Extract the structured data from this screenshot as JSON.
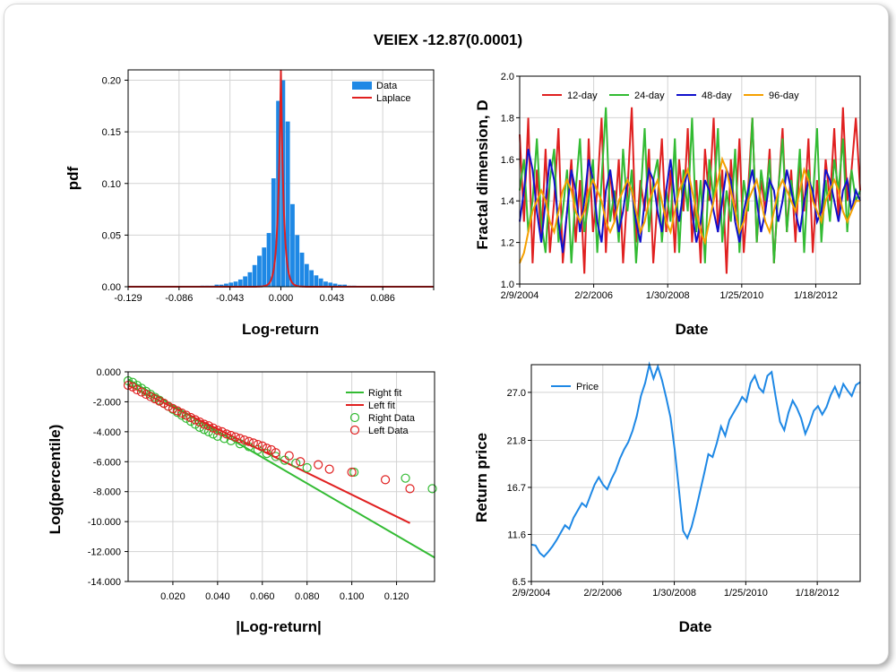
{
  "page": {
    "title": "VEIEX -12.87(0.0001)"
  },
  "colors": {
    "blue": "#1e88e5",
    "red": "#e02020",
    "green": "#33bb33",
    "navy": "#1010cc",
    "orange": "#f5a000",
    "grid": "#d3d3d3"
  },
  "chart_data": [
    {
      "id": "hist",
      "type": "bar",
      "title": "",
      "xlabel": "Log-return",
      "ylabel": "pdf",
      "xlim": [
        -0.129,
        0.129
      ],
      "ylim": [
        0,
        0.21
      ],
      "x_ticks": [
        "-0.129",
        "-0.086",
        "-0.043",
        "0.000",
        "0.043",
        "0.086"
      ],
      "y_ticks": [
        "0.00",
        "0.05",
        "0.10",
        "0.15",
        "0.20"
      ],
      "legend": {
        "position": "top-right",
        "entries": [
          "Data",
          "Laplace"
        ]
      },
      "bin_width": 0.004,
      "bin_centers": [
        -0.066,
        -0.062,
        -0.058,
        -0.054,
        -0.05,
        -0.046,
        -0.042,
        -0.038,
        -0.034,
        -0.03,
        -0.026,
        -0.022,
        -0.018,
        -0.014,
        -0.01,
        -0.006,
        -0.002,
        0.002,
        0.006,
        0.01,
        0.014,
        0.018,
        0.022,
        0.026,
        0.03,
        0.034,
        0.038,
        0.042,
        0.046,
        0.05,
        0.054,
        0.058,
        0.062
      ],
      "values": [
        0.001,
        0.001,
        0.001,
        0.002,
        0.002,
        0.003,
        0.004,
        0.005,
        0.007,
        0.01,
        0.014,
        0.021,
        0.03,
        0.038,
        0.052,
        0.105,
        0.18,
        0.2,
        0.16,
        0.08,
        0.05,
        0.033,
        0.022,
        0.016,
        0.011,
        0.008,
        0.005,
        0.004,
        0.003,
        0.002,
        0.002,
        0.001,
        0.001
      ],
      "series": [
        {
          "name": "Data",
          "color": "#1e88e5"
        },
        {
          "name": "Laplace",
          "color": "#e02020",
          "mu": 0.0,
          "b": 0.0024,
          "peak": 0.21
        }
      ]
    },
    {
      "id": "fractal",
      "type": "line",
      "title": "",
      "xlabel": "Date",
      "ylabel": "Fractal dimension, D",
      "ylim": [
        1.0,
        2.0
      ],
      "x_ticks": [
        "2/9/2004",
        "2/2/2006",
        "1/30/2008",
        "1/25/2010",
        "1/18/2012"
      ],
      "y_ticks": [
        "1.0",
        "1.2",
        "1.4",
        "1.6",
        "1.8",
        "2.0"
      ],
      "legend": {
        "position": "top-left",
        "entries": [
          "12-day",
          "24-day",
          "48-day",
          "96-day"
        ]
      },
      "series": [
        {
          "name": "12-day",
          "color": "#e02020",
          "values": [
            1.72,
            1.3,
            1.8,
            1.1,
            1.55,
            1.2,
            1.65,
            1.15,
            1.4,
            1.75,
            1.1,
            1.35,
            1.6,
            1.2,
            1.5,
            1.05,
            1.7,
            1.25,
            1.45,
            1.8,
            1.15,
            1.55,
            1.3,
            1.6,
            1.1,
            1.45,
            1.85,
            1.2,
            1.5,
            1.35,
            1.65,
            1.1,
            1.4,
            1.7,
            1.25,
            1.55,
            1.15,
            1.6,
            1.35,
            1.75,
            1.2,
            1.5,
            1.1,
            1.65,
            1.4,
            1.8,
            1.25,
            1.55,
            1.05,
            1.6,
            1.3,
            1.7,
            1.15,
            1.45,
            1.8,
            1.2,
            1.5,
            1.35,
            1.65,
            1.1,
            1.45,
            1.75,
            1.25,
            1.55,
            1.2,
            1.6,
            1.35,
            1.7,
            1.15,
            1.5,
            1.25,
            1.6,
            1.4,
            1.75,
            1.3,
            1.85,
            1.4,
            1.55,
            1.8,
            1.45
          ]
        },
        {
          "name": "24-day",
          "color": "#33bb33",
          "values": [
            1.45,
            1.6,
            1.25,
            1.4,
            1.7,
            1.3,
            1.15,
            1.5,
            1.65,
            1.2,
            1.35,
            1.55,
            1.1,
            1.45,
            1.7,
            1.25,
            1.4,
            1.6,
            1.15,
            1.5,
            1.85,
            1.3,
            1.45,
            1.2,
            1.65,
            1.35,
            1.55,
            1.1,
            1.4,
            1.75,
            1.25,
            1.5,
            1.6,
            1.2,
            1.45,
            1.3,
            1.7,
            1.15,
            1.55,
            1.35,
            1.8,
            1.25,
            1.5,
            1.1,
            1.6,
            1.4,
            1.75,
            1.2,
            1.45,
            1.3,
            1.65,
            1.15,
            1.5,
            1.35,
            1.8,
            1.2,
            1.55,
            1.4,
            1.6,
            1.1,
            1.45,
            1.7,
            1.25,
            1.5,
            1.35,
            1.65,
            1.15,
            1.55,
            1.4,
            1.75,
            1.2,
            1.5,
            1.3,
            1.6,
            1.45,
            1.7,
            1.25,
            1.55,
            1.4,
            1.45
          ]
        },
        {
          "name": "48-day",
          "color": "#1010cc",
          "values": [
            1.3,
            1.45,
            1.65,
            1.55,
            1.35,
            1.2,
            1.4,
            1.6,
            1.5,
            1.3,
            1.15,
            1.35,
            1.55,
            1.45,
            1.25,
            1.4,
            1.6,
            1.5,
            1.3,
            1.2,
            1.45,
            1.55,
            1.4,
            1.25,
            1.35,
            1.5,
            1.45,
            1.3,
            1.2,
            1.4,
            1.55,
            1.5,
            1.35,
            1.25,
            1.45,
            1.6,
            1.4,
            1.3,
            1.45,
            1.55,
            1.35,
            1.2,
            1.3,
            1.5,
            1.45,
            1.35,
            1.25,
            1.4,
            1.55,
            1.5,
            1.3,
            1.2,
            1.35,
            1.45,
            1.55,
            1.4,
            1.25,
            1.35,
            1.5,
            1.45,
            1.3,
            1.4,
            1.55,
            1.45,
            1.35,
            1.25,
            1.4,
            1.5,
            1.45,
            1.3,
            1.35,
            1.55,
            1.5,
            1.4,
            1.3,
            1.45,
            1.5,
            1.35,
            1.45,
            1.4
          ]
        },
        {
          "name": "96-day",
          "color": "#f5a000",
          "values": [
            1.1,
            1.15,
            1.25,
            1.35,
            1.4,
            1.45,
            1.4,
            1.3,
            1.25,
            1.35,
            1.45,
            1.5,
            1.45,
            1.35,
            1.3,
            1.35,
            1.45,
            1.5,
            1.45,
            1.4,
            1.3,
            1.25,
            1.3,
            1.4,
            1.45,
            1.5,
            1.45,
            1.35,
            1.25,
            1.3,
            1.4,
            1.45,
            1.5,
            1.4,
            1.3,
            1.25,
            1.35,
            1.45,
            1.5,
            1.55,
            1.45,
            1.35,
            1.25,
            1.2,
            1.3,
            1.4,
            1.5,
            1.6,
            1.55,
            1.45,
            1.35,
            1.25,
            1.3,
            1.4,
            1.45,
            1.5,
            1.4,
            1.3,
            1.25,
            1.35,
            1.45,
            1.5,
            1.45,
            1.4,
            1.35,
            1.45,
            1.55,
            1.5,
            1.4,
            1.35,
            1.3,
            1.4,
            1.45,
            1.5,
            1.45,
            1.35,
            1.3,
            1.35,
            1.4,
            1.4
          ]
        }
      ]
    },
    {
      "id": "tail",
      "type": "scatter",
      "title": "",
      "xlabel": "|Log-return|",
      "ylabel": "Log(percentile)",
      "xlim": [
        0,
        0.137
      ],
      "ylim": [
        -14,
        0
      ],
      "x_ticks": [
        "0.020",
        "0.040",
        "0.060",
        "0.080",
        "0.100",
        "0.120"
      ],
      "y_ticks": [
        "0.000",
        "-2.000",
        "-4.000",
        "-6.000",
        "-8.000",
        "-10.000",
        "-12.000",
        "-14.000"
      ],
      "legend": {
        "position": "top-right",
        "entries": [
          "Right fit",
          "Left fit",
          "Right Data",
          "Left Data"
        ]
      },
      "series": [
        {
          "name": "Right fit",
          "color": "#33bb33",
          "x": [
            0.0,
            0.137
          ],
          "y": [
            -0.5,
            -12.4
          ]
        },
        {
          "name": "Left fit",
          "color": "#e02020",
          "x": [
            0.0,
            0.126
          ],
          "y": [
            -0.9,
            -10.1
          ]
        },
        {
          "name": "Right Data",
          "color": "#33bb33",
          "x": [
            0.0,
            0.002,
            0.004,
            0.006,
            0.008,
            0.01,
            0.012,
            0.014,
            0.016,
            0.018,
            0.02,
            0.022,
            0.024,
            0.026,
            0.028,
            0.03,
            0.032,
            0.034,
            0.036,
            0.038,
            0.04,
            0.043,
            0.046,
            0.05,
            0.054,
            0.058,
            0.062,
            0.066,
            0.07,
            0.075,
            0.08,
            0.101,
            0.124,
            0.136
          ],
          "y": [
            -0.6,
            -0.7,
            -0.9,
            -1.1,
            -1.3,
            -1.5,
            -1.7,
            -1.9,
            -2.1,
            -2.3,
            -2.5,
            -2.7,
            -2.9,
            -3.1,
            -3.3,
            -3.5,
            -3.7,
            -3.85,
            -4.0,
            -4.15,
            -4.3,
            -4.45,
            -4.6,
            -4.8,
            -5.0,
            -5.2,
            -5.45,
            -5.65,
            -5.9,
            -6.1,
            -6.4,
            -6.7,
            -7.1,
            -7.8
          ]
        },
        {
          "name": "Left Data",
          "color": "#e02020",
          "x": [
            0.0,
            0.002,
            0.004,
            0.006,
            0.008,
            0.01,
            0.012,
            0.014,
            0.016,
            0.018,
            0.02,
            0.022,
            0.024,
            0.026,
            0.028,
            0.03,
            0.032,
            0.034,
            0.036,
            0.038,
            0.04,
            0.042,
            0.044,
            0.046,
            0.048,
            0.05,
            0.052,
            0.054,
            0.056,
            0.058,
            0.06,
            0.062,
            0.064,
            0.066,
            0.072,
            0.077,
            0.085,
            0.09,
            0.1,
            0.115,
            0.126
          ],
          "y": [
            -0.9,
            -1.0,
            -1.2,
            -1.35,
            -1.5,
            -1.65,
            -1.8,
            -1.95,
            -2.1,
            -2.3,
            -2.45,
            -2.6,
            -2.75,
            -2.9,
            -3.05,
            -3.2,
            -3.35,
            -3.5,
            -3.6,
            -3.75,
            -3.9,
            -4.0,
            -4.15,
            -4.25,
            -4.35,
            -4.45,
            -4.55,
            -4.65,
            -4.75,
            -4.85,
            -4.95,
            -5.1,
            -5.2,
            -5.4,
            -5.6,
            -6.0,
            -6.2,
            -6.5,
            -6.7,
            -7.2,
            -7.8
          ]
        }
      ]
    },
    {
      "id": "price",
      "type": "line",
      "title": "",
      "xlabel": "Date",
      "ylabel": "Return price",
      "ylim": [
        6.5,
        30.0
      ],
      "x_ticks": [
        "2/9/2004",
        "2/2/2006",
        "1/30/2008",
        "1/25/2010",
        "1/18/2012"
      ],
      "y_ticks": [
        "6.5",
        "11.6",
        "16.7",
        "21.8",
        "27.0"
      ],
      "legend": {
        "position": "top-left",
        "entries": [
          "Price"
        ]
      },
      "series": [
        {
          "name": "Price",
          "color": "#1e88e5",
          "values": [
            10.5,
            10.4,
            9.6,
            9.2,
            9.7,
            10.3,
            11.0,
            11.8,
            12.6,
            12.2,
            13.4,
            14.2,
            15.0,
            14.6,
            15.8,
            17.0,
            17.8,
            17.0,
            16.5,
            17.6,
            18.5,
            19.8,
            20.8,
            21.6,
            22.8,
            24.4,
            26.6,
            28.0,
            30.0,
            28.5,
            29.8,
            28.3,
            26.4,
            24.3,
            20.8,
            16.5,
            12.0,
            11.2,
            12.4,
            14.2,
            16.2,
            18.2,
            20.3,
            20.0,
            21.5,
            23.3,
            22.3,
            24.0,
            24.8,
            25.6,
            26.5,
            26.0,
            28.0,
            28.8,
            27.5,
            27.0,
            28.8,
            29.2,
            26.4,
            23.8,
            22.9,
            24.8,
            26.1,
            25.3,
            24.2,
            22.5,
            23.6,
            25.0,
            25.5,
            24.6,
            25.4,
            26.7,
            27.6,
            26.5,
            27.9,
            27.2,
            26.6,
            27.8,
            28.1
          ]
        }
      ]
    }
  ]
}
